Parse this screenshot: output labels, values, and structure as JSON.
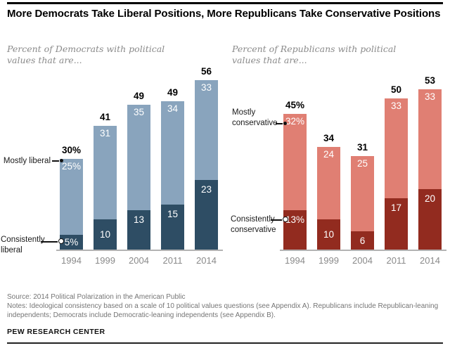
{
  "title": "More Democrats Take Liberal Positions, More Republicans Take Conservative Positions",
  "footer": {
    "source": "Source: 2014 Political Polarization in the American Public",
    "notes": "Notes: Ideological consistency based on a scale of 10 political values questions (see Appendix A). Republicans include Republican-leaning independents; Democrats include Democratic-leaning independents (see Appendix B).",
    "brand": "PEW RESEARCH CENTER"
  },
  "chart_data": [
    {
      "type": "bar",
      "stacked": true,
      "subtitle": "Percent of Democrats with political values that are...",
      "categories": [
        "1994",
        "1999",
        "2004",
        "2011",
        "2014"
      ],
      "series": [
        {
          "name": "Mostly liberal",
          "position": "top",
          "color": "#89a4bd",
          "values": [
            25,
            31,
            35,
            34,
            33
          ],
          "labels": [
            "25%",
            "31",
            "35",
            "34",
            "33"
          ]
        },
        {
          "name": "Consistently liberal",
          "position": "bottom",
          "color": "#2e4d64",
          "values": [
            5,
            10,
            13,
            15,
            23
          ],
          "labels": [
            "5%",
            "10",
            "13",
            "15",
            "23"
          ]
        }
      ],
      "totals": [
        30,
        41,
        49,
        49,
        56
      ],
      "total_labels": [
        "30%",
        "41",
        "49",
        "49",
        "56"
      ],
      "annotations": [
        {
          "text": "Mostly liberal"
        },
        {
          "text": "Consistently liberal"
        }
      ],
      "ylim": [
        0,
        60
      ],
      "grid": false,
      "legend_position": "pointer-labels-left-of-1994-bar"
    },
    {
      "type": "bar",
      "stacked": true,
      "subtitle": "Percent of Republicans with political values that are...",
      "categories": [
        "1994",
        "1999",
        "2004",
        "2011",
        "2014"
      ],
      "series": [
        {
          "name": "Mostly conservative",
          "position": "top",
          "color": "#e07f73",
          "values": [
            32,
            24,
            25,
            33,
            33
          ],
          "labels": [
            "32%",
            "24",
            "25",
            "33",
            "33"
          ]
        },
        {
          "name": "Consistently conservative",
          "position": "bottom",
          "color": "#922b1f",
          "values": [
            13,
            10,
            6,
            17,
            20
          ],
          "labels": [
            "13%",
            "10",
            "6",
            "17",
            "20"
          ]
        }
      ],
      "totals": [
        45,
        34,
        31,
        50,
        53
      ],
      "total_labels": [
        "45%",
        "34",
        "31",
        "50",
        "53"
      ],
      "annotations": [
        {
          "text": "Mostly conservative"
        },
        {
          "text": "Consistently conservative"
        }
      ],
      "ylim": [
        0,
        60
      ],
      "grid": false,
      "legend_position": "pointer-labels-left-of-1994-bar"
    }
  ]
}
